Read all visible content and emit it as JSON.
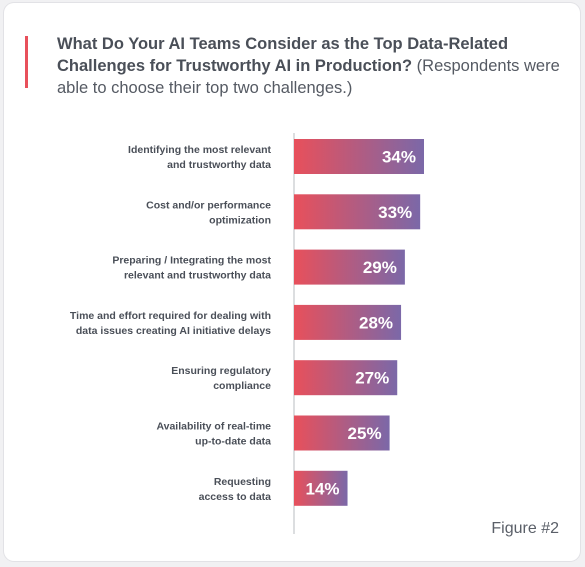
{
  "title": "What Do Your AI Teams Consider as the Top Data-Related Challenges for Trustworthy AI in Production?",
  "subtitle": "(Respondents were able to choose their top two challenges.)",
  "figure_label": "Figure #2",
  "colors": {
    "accent": "#e8505b",
    "bar_start": "#e8505b",
    "bar_end": "#7b68a8"
  },
  "chart_data": {
    "type": "bar",
    "orientation": "horizontal",
    "title": "What Do Your AI Teams Consider as the Top Data-Related Challenges for Trustworthy AI in Production?",
    "subtitle": "(Respondents were able to choose their top two challenges.)",
    "categories": [
      [
        "Identifying the most relevant",
        "and trustworthy data"
      ],
      [
        "Cost and/or performance",
        "optimization"
      ],
      [
        "Preparing / Integrating the most",
        "relevant and trustworthy data"
      ],
      [
        "Time and effort required for dealing with",
        "data issues creating AI initiative delays"
      ],
      [
        "Ensuring regulatory",
        "compliance"
      ],
      [
        "Availability of real-time",
        "up-to-date data"
      ],
      [
        "Requesting",
        "access to data"
      ]
    ],
    "values": [
      34,
      33,
      29,
      28,
      27,
      25,
      14
    ],
    "value_labels": [
      "34%",
      "33%",
      "29%",
      "28%",
      "27%",
      "25%",
      "14%"
    ],
    "unit": "%",
    "xlim": [
      0,
      100
    ],
    "grid": false,
    "legend": "none"
  }
}
